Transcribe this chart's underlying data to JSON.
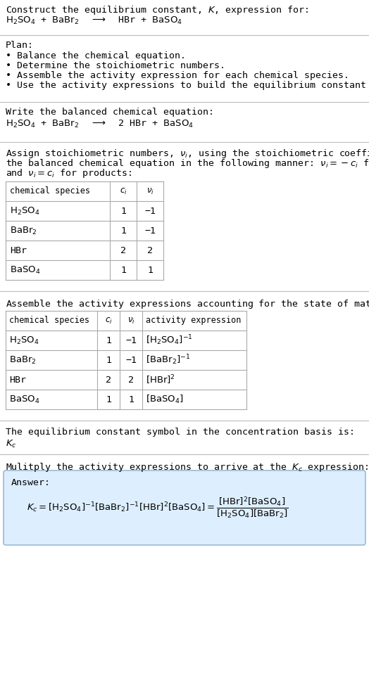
{
  "title_line1": "Construct the equilibrium constant, $K$, expression for:",
  "plan_header": "Plan:",
  "plan_items": [
    "• Balance the chemical equation.",
    "• Determine the stoichiometric numbers.",
    "• Assemble the activity expression for each chemical species.",
    "• Use the activity expressions to build the equilibrium constant expression."
  ],
  "balanced_header": "Write the balanced chemical equation:",
  "stoich_line1": "Assign stoichiometric numbers, $\\nu_i$, using the stoichiometric coefficients, $c_i$, from",
  "stoich_line2": "the balanced chemical equation in the following manner: $\\nu_i = -c_i$ for reactants",
  "stoich_line3": "and $\\nu_i = c_i$ for products:",
  "table1_data": [
    [
      "$\\mathrm{H_2SO_4}$",
      "1",
      "−1"
    ],
    [
      "$\\mathrm{BaBr_2}$",
      "1",
      "−1"
    ],
    [
      "HBr",
      "2",
      "2"
    ],
    [
      "$\\mathrm{BaSO_4}$",
      "1",
      "1"
    ]
  ],
  "activity_intro": "Assemble the activity expressions accounting for the state of matter and $\\nu_i$:",
  "table2_data": [
    [
      "$\\mathrm{H_2SO_4}$",
      "1",
      "−1",
      "$[\\mathrm{H_2SO_4}]^{-1}$"
    ],
    [
      "$\\mathrm{BaBr_2}$",
      "1",
      "−1",
      "$[\\mathrm{BaBr_2}]^{-1}$"
    ],
    [
      "HBr",
      "2",
      "2",
      "$[\\mathrm{HBr}]^2$"
    ],
    [
      "$\\mathrm{BaSO_4}$",
      "1",
      "1",
      "$[\\mathrm{BaSO_4}]$"
    ]
  ],
  "kc_text": "The equilibrium constant symbol in the concentration basis is:",
  "multiply_text": "Mulitply the activity expressions to arrive at the $K_c$ expression:",
  "answer_box_color": "#ddeeff",
  "answer_box_border": "#9bbbd4",
  "bg_color": "#ffffff",
  "text_color": "#000000",
  "table_border_color": "#aaaaaa",
  "font_size": 9.5,
  "mono_font": "DejaVu Sans Mono"
}
